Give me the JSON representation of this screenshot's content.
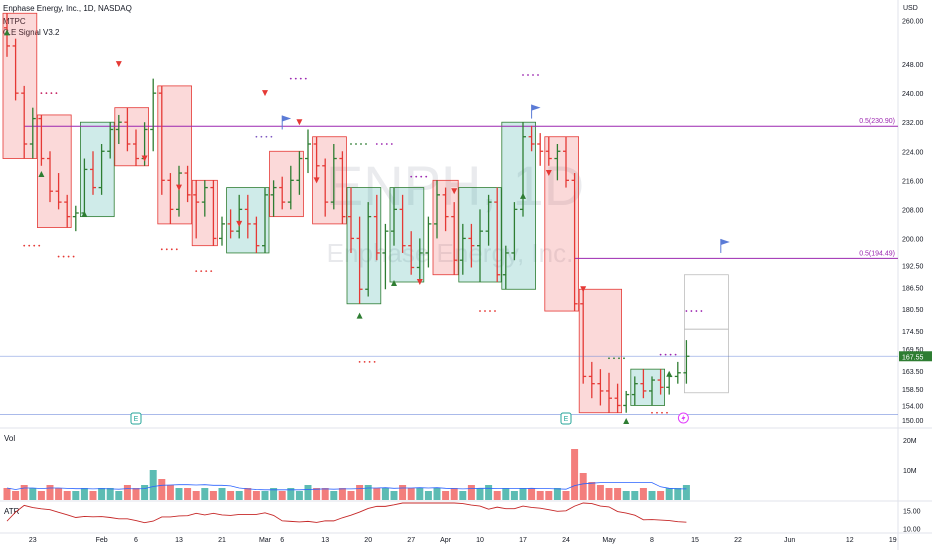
{
  "header": {
    "title": "Enphase Energy, Inc., 1D, NASDAQ",
    "indicator1": "MTPC",
    "indicator2": "C.E Signal V3.2"
  },
  "watermark": {
    "ticker": "ENPH, 1D",
    "name": "Enphase Energy, Inc."
  },
  "colors": {
    "up": "#26a69a",
    "up_bar": "#2e7d32",
    "down": "#ef5350",
    "down_bar": "#e53935",
    "level_line": "#9c27b0",
    "blue_line": "#5b7bd6",
    "price_badge": "#2e7d32",
    "atr": "#c62828",
    "vol_ma": "#2962ff"
  },
  "chart_data": {
    "type": "ohlc",
    "currency": "USD",
    "ylim": [
      150,
      264
    ],
    "y_ticks": [
      "260.00",
      "248.00",
      "240.00",
      "232.00",
      "224.00",
      "216.00",
      "208.00",
      "200.00",
      "192.50",
      "186.50",
      "180.50",
      "174.50",
      "169.50",
      "163.50",
      "158.50",
      "154.00",
      "150.00"
    ],
    "y_tick_values": [
      260,
      248,
      240,
      232,
      224,
      216,
      208,
      200,
      192.5,
      186.5,
      180.5,
      174.5,
      169.5,
      163.5,
      158.5,
      154,
      150
    ],
    "x_ticks": [
      {
        "label": "23",
        "i": 3
      },
      {
        "label": "Feb",
        "i": 11
      },
      {
        "label": "6",
        "i": 15
      },
      {
        "label": "13",
        "i": 20
      },
      {
        "label": "21",
        "i": 25
      },
      {
        "label": "Mar",
        "i": 30
      },
      {
        "label": "6",
        "i": 32
      },
      {
        "label": "13",
        "i": 37
      },
      {
        "label": "20",
        "i": 42
      },
      {
        "label": "27",
        "i": 47
      },
      {
        "label": "Apr",
        "i": 51
      },
      {
        "label": "10",
        "i": 55
      },
      {
        "label": "17",
        "i": 60
      },
      {
        "label": "24",
        "i": 65
      },
      {
        "label": "May",
        "i": 70
      },
      {
        "label": "8",
        "i": 75
      },
      {
        "label": "15",
        "i": 80
      },
      {
        "label": "22",
        "i": 85
      },
      {
        "label": "Jun",
        "i": 91
      },
      {
        "label": "12",
        "i": 98
      },
      {
        "label": "19",
        "i": 103
      }
    ],
    "last_price": "167.55",
    "levels": [
      {
        "label": "0.5(230.90)",
        "value": 230.9
      },
      {
        "label": "0.5(194.49)",
        "value": 194.49
      }
    ],
    "horizontal_lines": [
      167.55,
      151.5
    ],
    "candles": [
      {
        "o": 258,
        "h": 262,
        "l": 250,
        "c": 253
      },
      {
        "o": 253,
        "h": 255,
        "l": 238,
        "c": 240
      },
      {
        "o": 240,
        "h": 242,
        "l": 222,
        "c": 226
      },
      {
        "o": 226,
        "h": 236,
        "l": 222,
        "c": 233
      },
      {
        "o": 233,
        "h": 234,
        "l": 220,
        "c": 222
      },
      {
        "o": 222,
        "h": 224,
        "l": 210,
        "c": 213
      },
      {
        "o": 213,
        "h": 218,
        "l": 208,
        "c": 210
      },
      {
        "o": 210,
        "h": 212,
        "l": 203,
        "c": 206
      },
      {
        "o": 206,
        "h": 209,
        "l": 202,
        "c": 207
      },
      {
        "o": 207,
        "h": 222,
        "l": 206,
        "c": 219
      },
      {
        "o": 219,
        "h": 224,
        "l": 212,
        "c": 214
      },
      {
        "o": 214,
        "h": 226,
        "l": 212,
        "c": 224
      },
      {
        "o": 224,
        "h": 232,
        "l": 222,
        "c": 230
      },
      {
        "o": 230,
        "h": 234,
        "l": 226,
        "c": 232
      },
      {
        "o": 232,
        "h": 236,
        "l": 224,
        "c": 226
      },
      {
        "o": 226,
        "h": 230,
        "l": 220,
        "c": 222
      },
      {
        "o": 222,
        "h": 232,
        "l": 220,
        "c": 230
      },
      {
        "o": 230,
        "h": 244,
        "l": 224,
        "c": 240
      },
      {
        "o": 240,
        "h": 242,
        "l": 212,
        "c": 216
      },
      {
        "o": 216,
        "h": 218,
        "l": 204,
        "c": 208
      },
      {
        "o": 208,
        "h": 220,
        "l": 206,
        "c": 218
      },
      {
        "o": 218,
        "h": 220,
        "l": 210,
        "c": 212
      },
      {
        "o": 212,
        "h": 216,
        "l": 200,
        "c": 210
      },
      {
        "o": 210,
        "h": 216,
        "l": 206,
        "c": 214
      },
      {
        "o": 214,
        "h": 216,
        "l": 198,
        "c": 200
      },
      {
        "o": 200,
        "h": 206,
        "l": 198,
        "c": 204
      },
      {
        "o": 204,
        "h": 208,
        "l": 200,
        "c": 202
      },
      {
        "o": 202,
        "h": 212,
        "l": 200,
        "c": 208
      },
      {
        "o": 208,
        "h": 212,
        "l": 200,
        "c": 204
      },
      {
        "o": 204,
        "h": 206,
        "l": 196,
        "c": 198
      },
      {
        "o": 198,
        "h": 214,
        "l": 196,
        "c": 212
      },
      {
        "o": 212,
        "h": 216,
        "l": 206,
        "c": 214
      },
      {
        "o": 214,
        "h": 217,
        "l": 208,
        "c": 210
      },
      {
        "o": 210,
        "h": 220,
        "l": 208,
        "c": 216
      },
      {
        "o": 216,
        "h": 224,
        "l": 212,
        "c": 222
      },
      {
        "o": 222,
        "h": 230,
        "l": 218,
        "c": 226
      },
      {
        "o": 226,
        "h": 228,
        "l": 216,
        "c": 220
      },
      {
        "o": 220,
        "h": 222,
        "l": 206,
        "c": 210
      },
      {
        "o": 210,
        "h": 226,
        "l": 208,
        "c": 222
      },
      {
        "o": 222,
        "h": 224,
        "l": 204,
        "c": 206
      },
      {
        "o": 206,
        "h": 214,
        "l": 196,
        "c": 200
      },
      {
        "o": 200,
        "h": 206,
        "l": 182,
        "c": 186
      },
      {
        "o": 186,
        "h": 210,
        "l": 184,
        "c": 206
      },
      {
        "o": 206,
        "h": 212,
        "l": 194,
        "c": 196
      },
      {
        "o": 196,
        "h": 204,
        "l": 186,
        "c": 202
      },
      {
        "o": 202,
        "h": 214,
        "l": 198,
        "c": 208
      },
      {
        "o": 208,
        "h": 212,
        "l": 196,
        "c": 198
      },
      {
        "o": 198,
        "h": 202,
        "l": 190,
        "c": 192
      },
      {
        "o": 192,
        "h": 200,
        "l": 188,
        "c": 196
      },
      {
        "o": 196,
        "h": 206,
        "l": 192,
        "c": 204
      },
      {
        "o": 204,
        "h": 216,
        "l": 200,
        "c": 212
      },
      {
        "o": 212,
        "h": 214,
        "l": 202,
        "c": 206
      },
      {
        "o": 206,
        "h": 210,
        "l": 190,
        "c": 194
      },
      {
        "o": 194,
        "h": 204,
        "l": 190,
        "c": 200
      },
      {
        "o": 200,
        "h": 204,
        "l": 192,
        "c": 198
      },
      {
        "o": 198,
        "h": 208,
        "l": 188,
        "c": 202
      },
      {
        "o": 202,
        "h": 212,
        "l": 198,
        "c": 210
      },
      {
        "o": 210,
        "h": 214,
        "l": 188,
        "c": 190
      },
      {
        "o": 190,
        "h": 198,
        "l": 186,
        "c": 196
      },
      {
        "o": 196,
        "h": 210,
        "l": 194,
        "c": 208
      },
      {
        "o": 208,
        "h": 232,
        "l": 206,
        "c": 228
      },
      {
        "o": 228,
        "h": 231,
        "l": 224,
        "c": 226
      },
      {
        "o": 226,
        "h": 229,
        "l": 220,
        "c": 224
      },
      {
        "o": 224,
        "h": 228,
        "l": 220,
        "c": 222
      },
      {
        "o": 222,
        "h": 226,
        "l": 216,
        "c": 224
      },
      {
        "o": 224,
        "h": 228,
        "l": 214,
        "c": 216
      },
      {
        "o": 216,
        "h": 218,
        "l": 180,
        "c": 182
      },
      {
        "o": 182,
        "h": 186,
        "l": 160,
        "c": 162
      },
      {
        "o": 162,
        "h": 166,
        "l": 156,
        "c": 160
      },
      {
        "o": 160,
        "h": 164,
        "l": 154,
        "c": 158
      },
      {
        "o": 158,
        "h": 163,
        "l": 152,
        "c": 156
      },
      {
        "o": 156,
        "h": 160,
        "l": 152,
        "c": 154
      },
      {
        "o": 154,
        "h": 158,
        "l": 152,
        "c": 157
      },
      {
        "o": 157,
        "h": 162,
        "l": 154,
        "c": 160
      },
      {
        "o": 160,
        "h": 164,
        "l": 156,
        "c": 158
      },
      {
        "o": 158,
        "h": 162,
        "l": 154,
        "c": 161
      },
      {
        "o": 161,
        "h": 164,
        "l": 157,
        "c": 159
      },
      {
        "o": 159,
        "h": 163,
        "l": 157,
        "c": 162
      },
      {
        "o": 162,
        "h": 166,
        "l": 160,
        "c": 163
      },
      {
        "o": 163,
        "h": 172,
        "l": 160,
        "c": 167.55
      }
    ],
    "volume": [
      4,
      3,
      5,
      4,
      3,
      5,
      4,
      3,
      3,
      4,
      3,
      4,
      4,
      3,
      5,
      4,
      5,
      10,
      7,
      5,
      4,
      4,
      3,
      4,
      3,
      4,
      3,
      3,
      4,
      3,
      3,
      4,
      3,
      4,
      3,
      5,
      4,
      4,
      3,
      4,
      3,
      5,
      5,
      4,
      4,
      3,
      5,
      4,
      4,
      3,
      4,
      3,
      4,
      3,
      5,
      4,
      5,
      3,
      4,
      3,
      4,
      4,
      3,
      3,
      4,
      3,
      17,
      9,
      6,
      5,
      4,
      4,
      3,
      3,
      4,
      3,
      3,
      4,
      4,
      5
    ],
    "volume_ticks": [
      "20M",
      "10M"
    ],
    "atr_ticks": [
      "15.00",
      "10.00"
    ],
    "vol_label": "Vol",
    "atr_label": "ATR",
    "e_label": "E"
  }
}
